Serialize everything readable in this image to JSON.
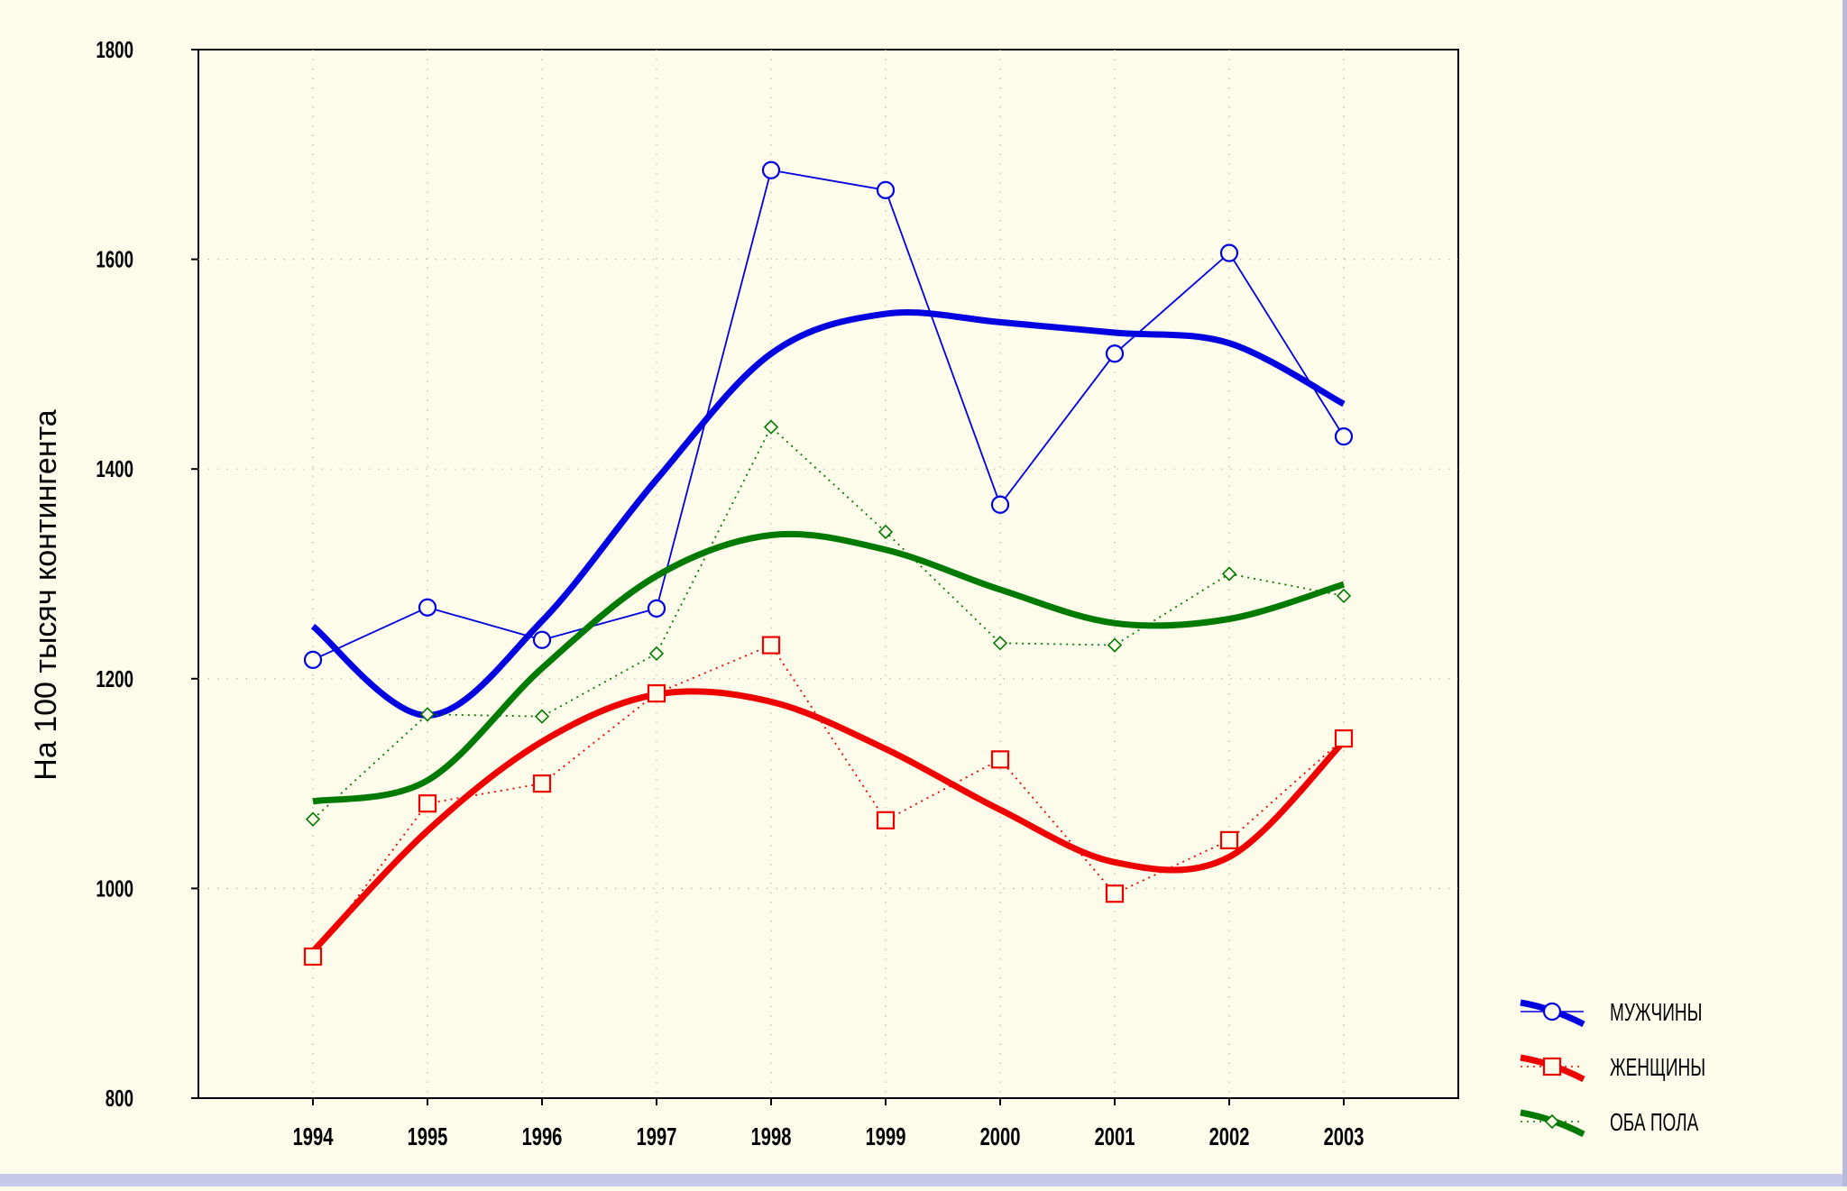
{
  "chart_data": {
    "type": "line",
    "title": "",
    "xlabel": "",
    "ylabel": "На 100 тысяч контингента",
    "ylim": [
      800,
      1800
    ],
    "yticks": [
      800,
      1000,
      1200,
      1400,
      1600,
      1800
    ],
    "x": [
      1994,
      1995,
      1996,
      1997,
      1998,
      1999,
      2000,
      2001,
      2002,
      2003
    ],
    "xlim": [
      1993,
      2004
    ],
    "grid": true,
    "legend_position": "bottom-right, outside plot",
    "series": [
      {
        "name": "МУЖЧИНЫ",
        "color": "#0000e0",
        "marker": "circle",
        "line_style": "solid",
        "values": [
          1218,
          1268,
          1237,
          1267,
          1685,
          1666,
          1366,
          1510,
          1606,
          1431
        ],
        "trend": [
          1250,
          1165,
          1255,
          1390,
          1510,
          1548,
          1540,
          1530,
          1520,
          1462
        ]
      },
      {
        "name": "ЖЕНЩИНЫ",
        "color": "#ee0000",
        "marker": "square",
        "line_style": "dotted",
        "values": [
          935,
          1081,
          1100,
          1186,
          1232,
          1065,
          1123,
          995,
          1046,
          1143
        ],
        "trend": [
          940,
          1055,
          1140,
          1185,
          1178,
          1133,
          1075,
          1025,
          1030,
          1140
        ]
      },
      {
        "name": "ОБА ПОЛА",
        "color": "#007a00",
        "marker": "diamond",
        "line_style": "dotted",
        "values": [
          1066,
          1166,
          1164,
          1224,
          1440,
          1340,
          1234,
          1232,
          1300,
          1279
        ],
        "trend": [
          1083,
          1103,
          1210,
          1298,
          1337,
          1323,
          1285,
          1253,
          1257,
          1290
        ]
      }
    ]
  }
}
